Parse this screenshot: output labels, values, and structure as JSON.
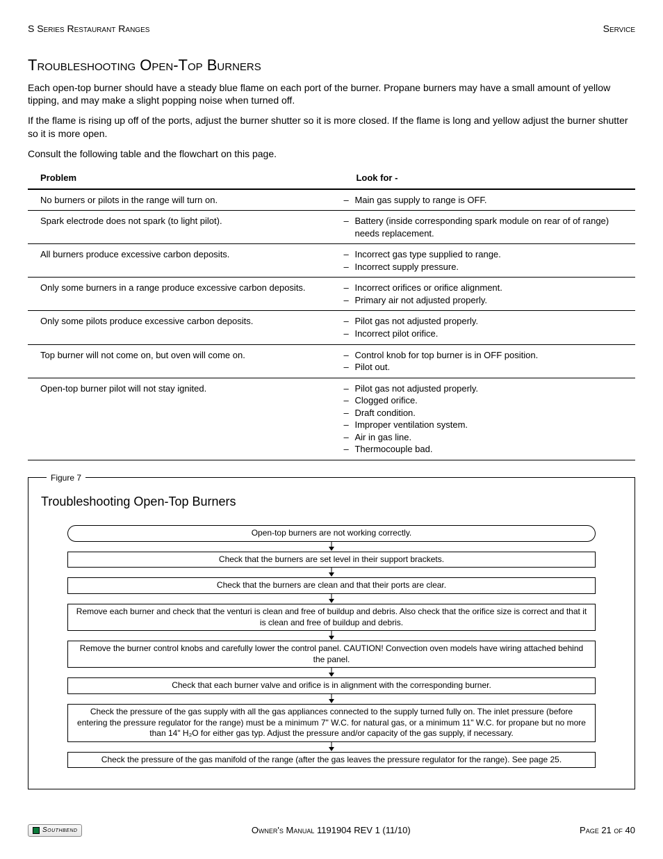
{
  "header": {
    "left": "S Series Restaurant Ranges",
    "right": "Service"
  },
  "title": "Troubleshooting Open-Top Burners",
  "intro": [
    "Each open-top burner should have a steady blue flame on each port of the burner. Propane burners may have a small amount of yellow tipping, and may make a slight popping noise when turned off.",
    "If the flame is rising up off of the ports, adjust the burner shutter so it is more closed. If the flame is long and yellow adjust the burner shutter so it is more open.",
    "Consult the following table and the flowchart on this page."
  ],
  "table": {
    "headers": [
      "Problem",
      "Look for -"
    ],
    "rows": [
      {
        "problem": "No burners or pilots in the range will turn on.",
        "lookfor": [
          "Main gas supply to range is OFF."
        ]
      },
      {
        "problem": "Spark electrode does not spark (to light pilot).",
        "lookfor": [
          "Battery (inside corresponding spark module on rear of of range) needs replacement."
        ]
      },
      {
        "problem": "All burners produce excessive carbon deposits.",
        "lookfor": [
          "Incorrect gas type supplied to range.",
          "Incorrect supply pressure."
        ]
      },
      {
        "problem": "Only some burners in a range produce excessive carbon deposits.",
        "lookfor": [
          "Incorrect orifices or orifice alignment.",
          "Primary air not adjusted properly."
        ]
      },
      {
        "problem": "Only some pilots produce excessive carbon deposits.",
        "lookfor": [
          "Pilot gas not adjusted properly.",
          "Incorrect pilot orifice."
        ]
      },
      {
        "problem": "Top burner will not come on, but oven will come on.",
        "lookfor": [
          "Control knob for top burner is in OFF position.",
          "Pilot out."
        ]
      },
      {
        "problem": "Open-top burner pilot will not stay ignited.",
        "lookfor": [
          "Pilot gas not adjusted properly.",
          "Clogged orifice.",
          "Draft condition.",
          "Improper ventilation system.",
          "Air in gas line.",
          "Thermocouple bad."
        ]
      }
    ]
  },
  "figure": {
    "legend": "Figure 7",
    "title": "Troubleshooting Open-Top Burners",
    "steps": [
      {
        "text": "Open-top burners are not working correctly.",
        "rounded": true
      },
      {
        "text": "Check that the burners are set level in their support brackets.",
        "rounded": false
      },
      {
        "text": "Check that the burners are clean and that their ports are clear.",
        "rounded": false
      },
      {
        "text": "Remove each burner and check that the venturi is clean and free of buildup and debris. Also check that the orifice size is correct and that it is clean and free of buildup and debris.",
        "rounded": false
      },
      {
        "text": "Remove the burner control knobs and carefully lower the control panel. CAUTION! Convection oven models have wiring attached behind the panel.",
        "rounded": false
      },
      {
        "text": "Check that each burner valve and orifice is in alignment with the corresponding burner.",
        "rounded": false
      },
      {
        "text": "Check the pressure of the gas supply with all the gas appliances connected to the supply turned fully on. The inlet pressure (before entering the pressure regulator for the range) must be a minimum 7\" W.C.  for natural gas, or a minimum 11\" W.C. for propane but no more than 14\" H₂O for either gas typ. Adjust the pressure and/or capacity of the gas supply, if necessary.",
        "rounded": false
      },
      {
        "text": "Check the pressure of the gas manifold of the range (after the gas leaves the pressure regulator for the range).  See page 25.",
        "rounded": false
      }
    ]
  },
  "footer": {
    "logo": "Southbend",
    "center": "Owner's Manual 1191904 REV 1 (11/10)",
    "right_prefix": "Page ",
    "page_current": "21",
    "page_sep": " of ",
    "page_total": "40"
  }
}
